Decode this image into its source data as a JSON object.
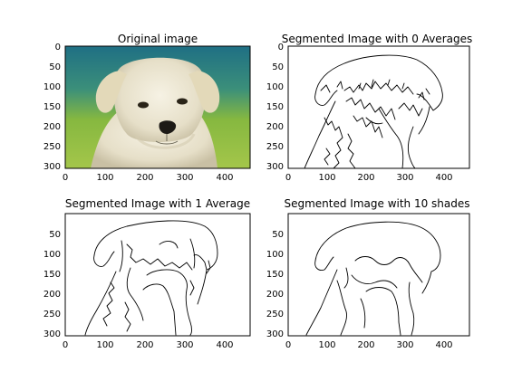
{
  "figure": {
    "panels": [
      {
        "title": "Original image",
        "kind": "photo",
        "x_ticks": [
          "0",
          "100",
          "200",
          "300",
          "400"
        ],
        "y_ticks": [
          "0",
          "50",
          "100",
          "150",
          "200",
          "250",
          "300"
        ]
      },
      {
        "title": "Segmented Image with 0 Averages",
        "kind": "segmentation-noisy",
        "x_ticks": [
          "0",
          "100",
          "200",
          "300",
          "400"
        ],
        "y_ticks": [
          "0",
          "50",
          "100",
          "150",
          "200",
          "250",
          "300"
        ]
      },
      {
        "title": "Segmented Image with 1 Average",
        "kind": "segmentation-medium",
        "x_ticks": [
          "0",
          "100",
          "200",
          "300",
          "400"
        ],
        "y_ticks": [
          "50",
          "100",
          "150",
          "200",
          "250",
          "300"
        ]
      },
      {
        "title": "Segmented Image with 10 shades",
        "kind": "segmentation-smooth",
        "x_ticks": [
          "0",
          "100",
          "200",
          "300",
          "400"
        ],
        "y_ticks": [
          "50",
          "100",
          "150",
          "200",
          "250",
          "300"
        ]
      }
    ],
    "colors": {
      "photo_background_top": "#2c7f86",
      "photo_background_bottom": "#8dbb3a",
      "puppy_fur": "#ece6d2",
      "outline": "#000000"
    }
  }
}
